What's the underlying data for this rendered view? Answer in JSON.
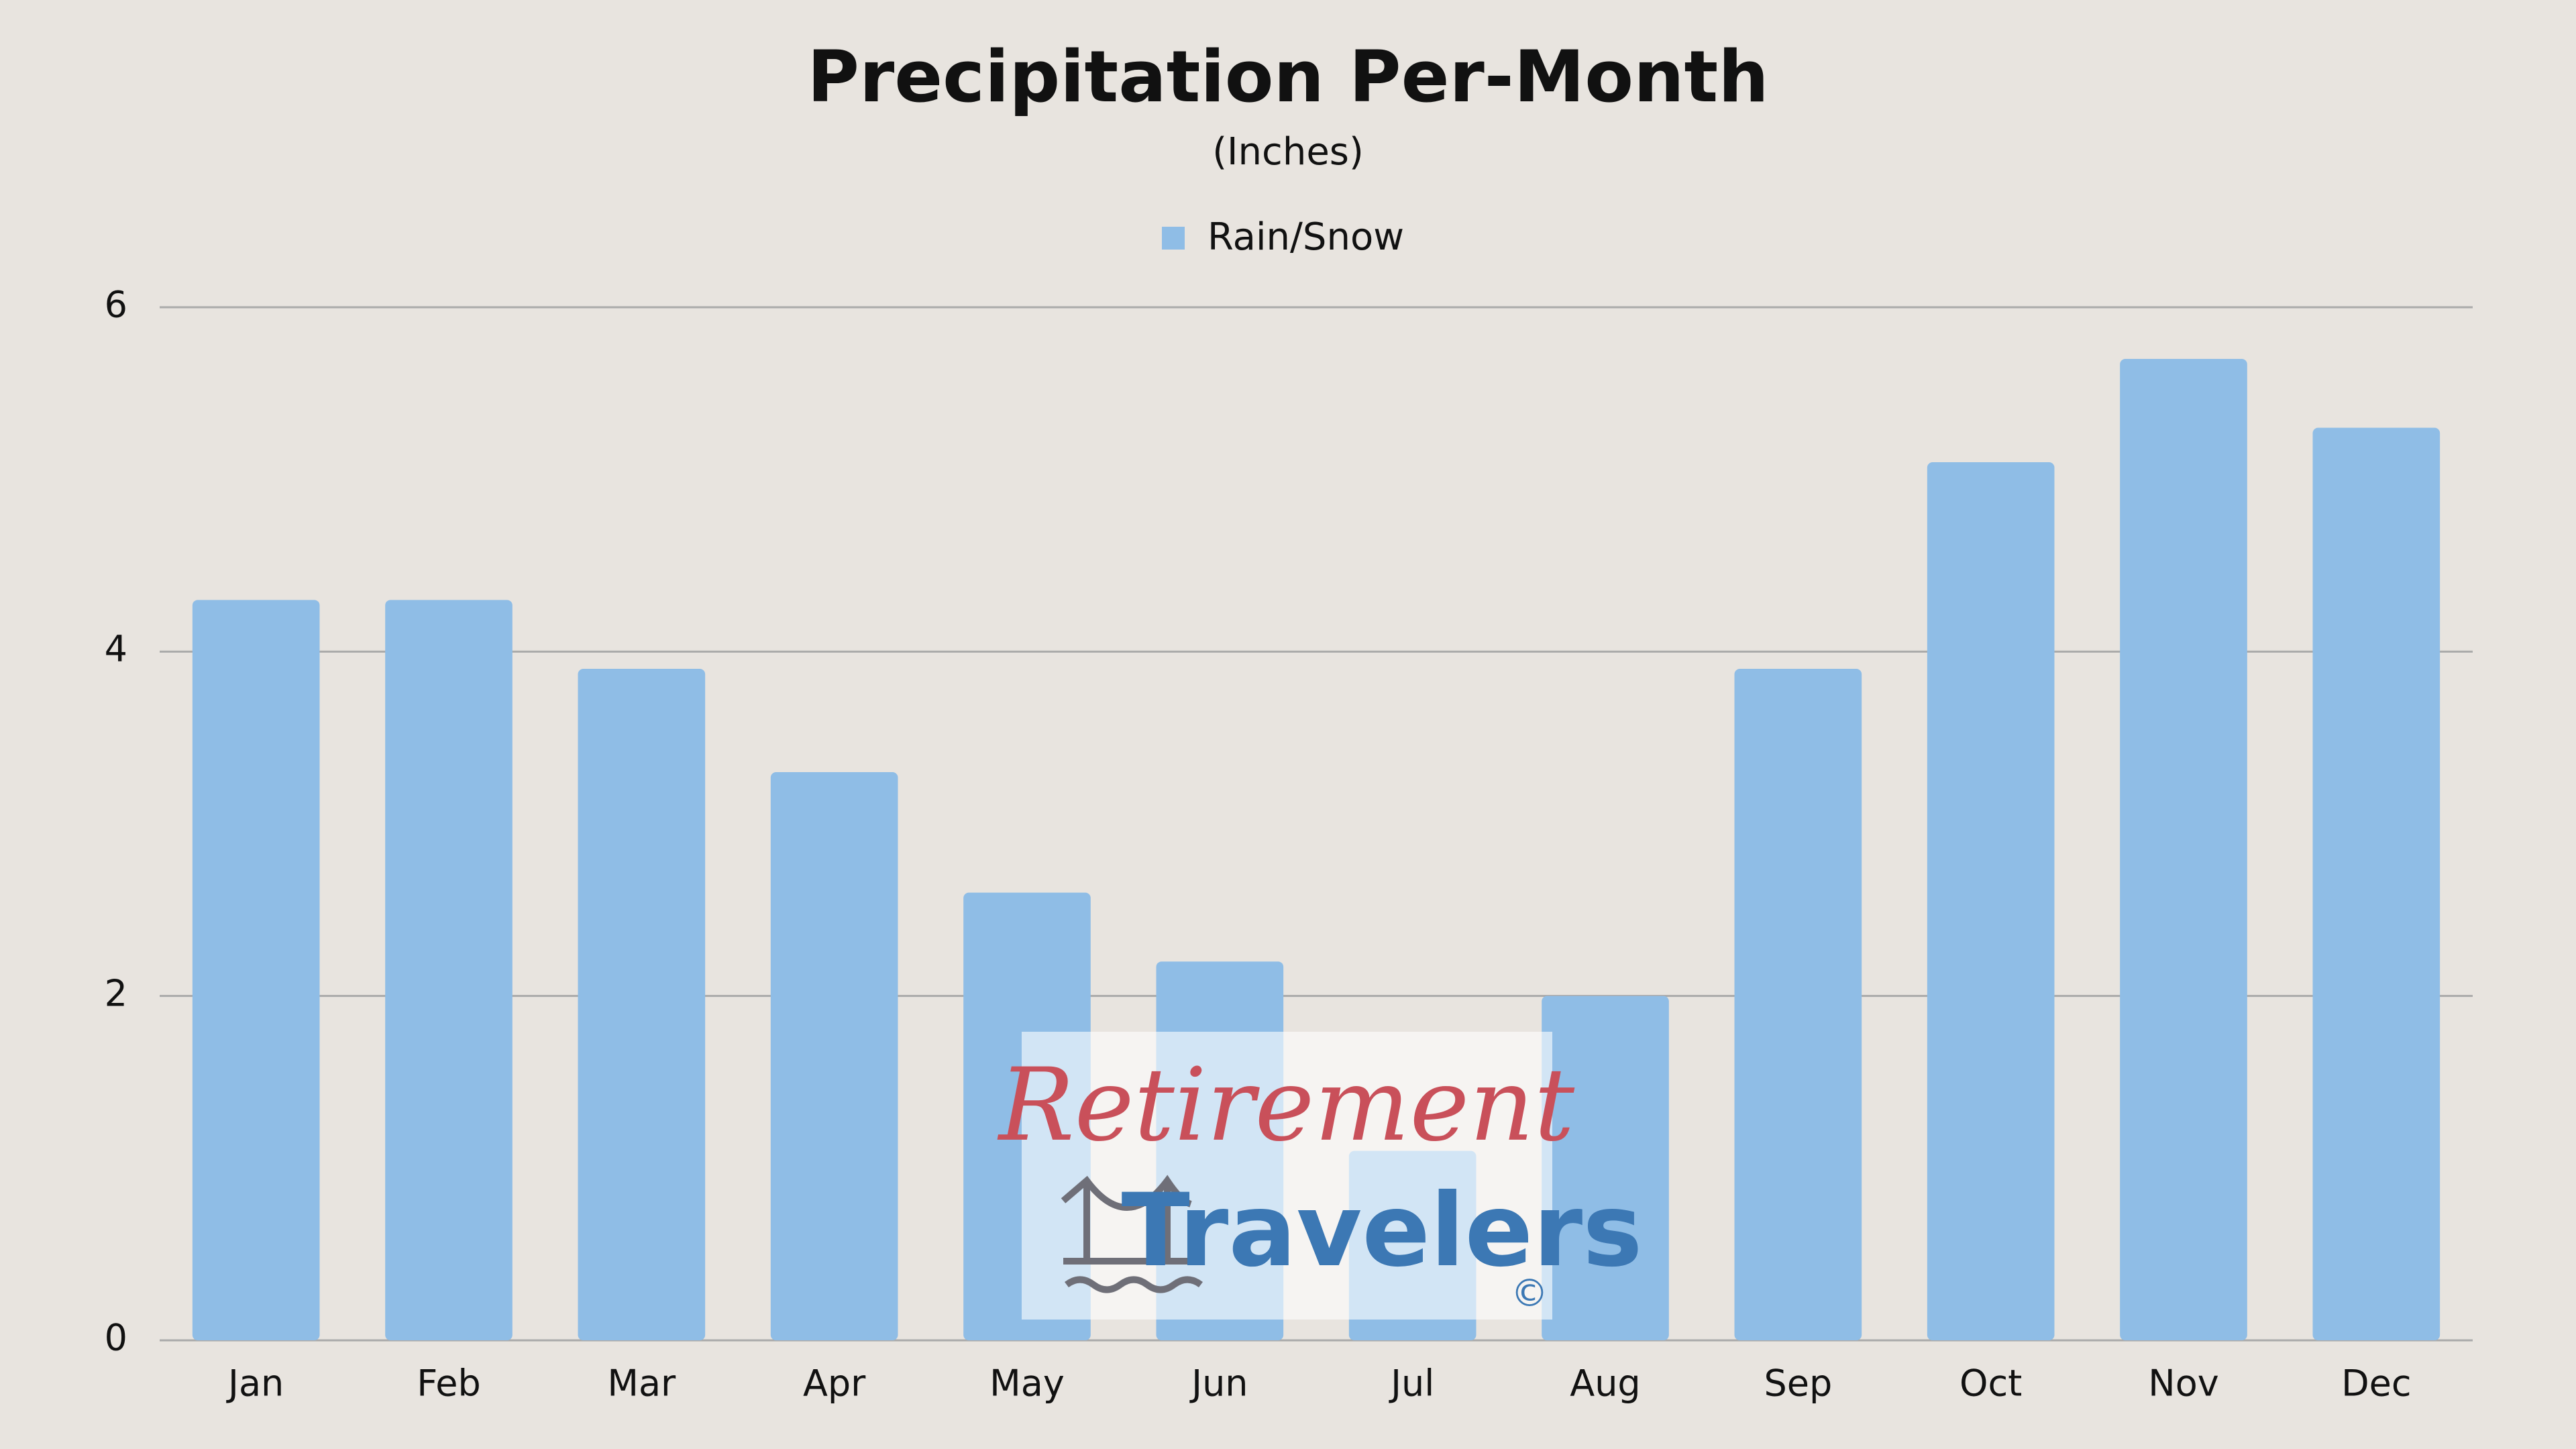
{
  "chart_data": {
    "type": "bar",
    "title": "Precipitation Per-Month",
    "subtitle": "(Inches)",
    "categories": [
      "Jan",
      "Feb",
      "Mar",
      "Apr",
      "May",
      "Jun",
      "Jul",
      "Aug",
      "Sep",
      "Oct",
      "Nov",
      "Dec"
    ],
    "series": [
      {
        "name": "Rain/Snow",
        "color": "#8fbde6",
        "values": [
          4.3,
          4.3,
          3.9,
          3.3,
          2.6,
          2.2,
          1.1,
          2.0,
          3.9,
          5.1,
          5.7,
          5.3
        ]
      }
    ],
    "ylim": [
      0,
      6
    ],
    "yticks": [
      0,
      2,
      4,
      6
    ],
    "grid": true,
    "legend": "top",
    "watermark": {
      "line1": "Retirement",
      "line2": "Travelers",
      "mark": "©"
    }
  }
}
